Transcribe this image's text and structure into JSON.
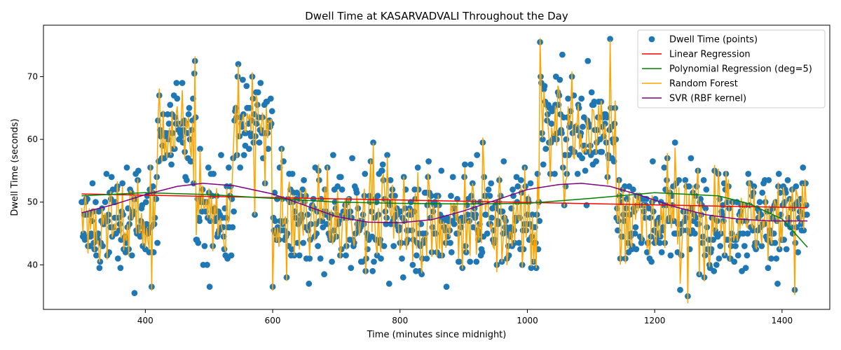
{
  "chart_data": {
    "type": "scatter",
    "title": "Dwell Time at KASARVADVALI Throughout the Day",
    "xlabel": "Time (minutes since midnight)",
    "ylabel": "Dwell Time (seconds)",
    "xlim": [
      240,
      1475
    ],
    "ylim": [
      32.9,
      78.2
    ],
    "xticks": [
      400,
      600,
      800,
      1000,
      1200,
      1400
    ],
    "yticks": [
      40,
      50,
      60,
      70
    ],
    "grid": false,
    "legend_position": "top-right",
    "x_range": [
      300,
      1440
    ],
    "segments": [
      {
        "start": 300,
        "end": 420,
        "mean": 47.5,
        "spread": 3.8
      },
      {
        "start": 420,
        "end": 480,
        "mean": 61.5,
        "spread": 4.0
      },
      {
        "start": 480,
        "end": 540,
        "mean": 48.0,
        "spread": 4.2
      },
      {
        "start": 540,
        "end": 600,
        "mean": 62.5,
        "spread": 4.0
      },
      {
        "start": 600,
        "end": 1020,
        "mean": 47.5,
        "spread": 4.4
      },
      {
        "start": 1020,
        "end": 1140,
        "mean": 62.0,
        "spread": 4.5
      },
      {
        "start": 1140,
        "end": 1440,
        "mean": 47.5,
        "spread": 4.2
      }
    ],
    "outliers": [
      {
        "x": 383,
        "y": 35.5
      },
      {
        "x": 410,
        "y": 36.5
      },
      {
        "x": 478,
        "y": 72.5
      },
      {
        "x": 477,
        "y": 70.5
      },
      {
        "x": 546,
        "y": 72.0
      },
      {
        "x": 572,
        "y": 48.0
      },
      {
        "x": 600,
        "y": 36.5
      },
      {
        "x": 873,
        "y": 36.5
      },
      {
        "x": 930,
        "y": 59.5
      },
      {
        "x": 1020,
        "y": 75.5
      },
      {
        "x": 1055,
        "y": 73.5
      },
      {
        "x": 1095,
        "y": 72.5
      },
      {
        "x": 1130,
        "y": 76.0
      },
      {
        "x": 1252,
        "y": 35.0
      },
      {
        "x": 1420,
        "y": 36.0
      },
      {
        "x": 1232,
        "y": 59.5
      },
      {
        "x": 1093,
        "y": 49.5
      },
      {
        "x": 1058,
        "y": 49.5
      },
      {
        "x": 725,
        "y": 57.0
      }
    ],
    "regression": {
      "linear": {
        "x": [
          300,
          1440
        ],
        "y": [
          51.3,
          49.1
        ]
      },
      "polynomial": {
        "x": [
          300,
          400,
          500,
          600,
          700,
          800,
          900,
          1000,
          1100,
          1200,
          1300,
          1350,
          1400,
          1440
        ],
        "y": [
          51.0,
          51.5,
          51.2,
          50.6,
          50.0,
          49.8,
          49.7,
          49.8,
          50.6,
          51.5,
          51.0,
          49.7,
          47.3,
          42.8
        ]
      },
      "svr": {
        "x": [
          300,
          350,
          400,
          450,
          490,
          540,
          600,
          650,
          700,
          750,
          800,
          850,
          900,
          950,
          1000,
          1050,
          1085,
          1130,
          1180,
          1230,
          1280,
          1330,
          1380,
          1440
        ],
        "y": [
          48.3,
          49.6,
          51.2,
          52.5,
          53.0,
          52.6,
          51.3,
          49.5,
          47.7,
          46.8,
          46.7,
          47.2,
          48.6,
          50.3,
          52.0,
          52.8,
          53.0,
          52.5,
          51.0,
          49.3,
          48.0,
          47.3,
          47.0,
          47.0
        ]
      }
    },
    "series": [
      {
        "name": "Dwell Time (points)",
        "type": "scatter",
        "color": "#1f77b4"
      },
      {
        "name": "Linear Regression",
        "type": "line",
        "color": "#ff0000"
      },
      {
        "name": "Polynomial Regression (deg=5)",
        "type": "line",
        "color": "#008000"
      },
      {
        "name": "Random Forest",
        "type": "line",
        "color": "#ffa500"
      },
      {
        "name": "SVR (RBF kernel)",
        "type": "line",
        "color": "#800080"
      }
    ]
  }
}
